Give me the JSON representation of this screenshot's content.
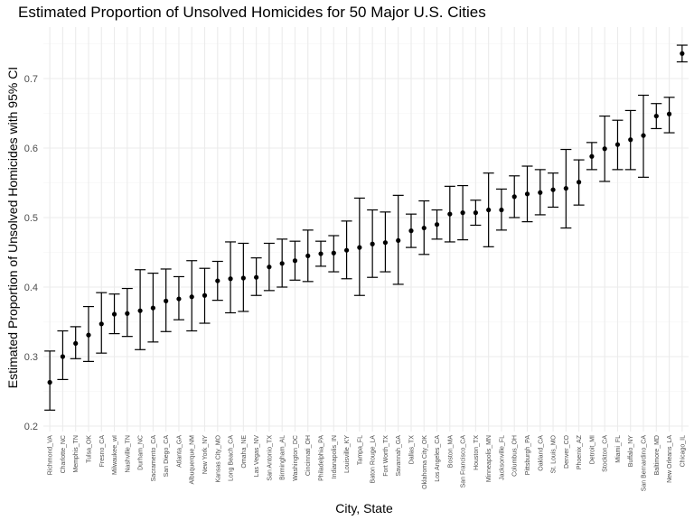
{
  "chart_data": {
    "type": "scatter",
    "title": "Estimated Proportion of Unsolved Homicides for 50 Major U.S. Cities",
    "xlabel": "City, State",
    "ylabel": "Estimated Proportion of Unsolved Homicides with 95% CI",
    "ylim": [
      0.2,
      0.75
    ],
    "yticks": [
      0.2,
      0.3,
      0.4,
      0.5,
      0.6,
      0.7
    ],
    "ytick_labels": [
      "0.2",
      "0.3",
      "0.4",
      "0.5",
      "0.6",
      "0.7"
    ],
    "grid": true,
    "categories": [
      "Richmond_VA",
      "Charlotte_NC",
      "Memphis_TN",
      "Tulsa_OK",
      "Fresno_CA",
      "Milwaukee_wI",
      "Nashville_TN",
      "Durham_NC",
      "Sacramento_CA",
      "San Diego_CA",
      "Atlanta_GA",
      "Albuquerque_NM",
      "New York_NY",
      "Kansas City_MO",
      "Long Beach_CA",
      "Omaha_NE",
      "Las Vegas_NV",
      "San Antonio_TX",
      "Birmingham_AL",
      "Washington_DC",
      "Cincinnati_OH",
      "Philadelphia_PA",
      "Indianapolis_IN",
      "Louisville_KY",
      "Tampa_FL",
      "Baton Rouge_LA",
      "Fort Worth_TX",
      "Savannah_GA",
      "Dallas_TX",
      "Oklahoma City_OK",
      "Los Angeles_CA",
      "Boston_MA",
      "San Francisco_CA",
      "Houston_TX",
      "Minneapolis_MN",
      "Jacksonville_FL",
      "Columbus_OH",
      "Pittsburgh_PA",
      "Oakland_CA",
      "St. Louis_MO",
      "Denver_CO",
      "Phoenix_AZ",
      "Detroit_MI",
      "Stockton_CA",
      "Miami_FL",
      "Buffalo_NY",
      "San Bernardino_CA",
      "Baltimore_MD",
      "New Orleans_LA",
      "Chicago_IL"
    ],
    "estimate": [
      0.263,
      0.3,
      0.319,
      0.331,
      0.347,
      0.361,
      0.362,
      0.366,
      0.37,
      0.38,
      0.383,
      0.386,
      0.388,
      0.409,
      0.412,
      0.413,
      0.414,
      0.429,
      0.434,
      0.438,
      0.445,
      0.448,
      0.449,
      0.453,
      0.457,
      0.462,
      0.464,
      0.467,
      0.481,
      0.485,
      0.49,
      0.505,
      0.507,
      0.507,
      0.511,
      0.511,
      0.53,
      0.534,
      0.536,
      0.54,
      0.542,
      0.551,
      0.588,
      0.599,
      0.605,
      0.612,
      0.618,
      0.646,
      0.649,
      0.736
    ],
    "ci_low": [
      0.223,
      0.267,
      0.297,
      0.293,
      0.305,
      0.333,
      0.329,
      0.31,
      0.321,
      0.336,
      0.353,
      0.337,
      0.348,
      0.381,
      0.363,
      0.365,
      0.388,
      0.395,
      0.4,
      0.41,
      0.408,
      0.43,
      0.422,
      0.412,
      0.388,
      0.414,
      0.422,
      0.404,
      0.457,
      0.447,
      0.469,
      0.465,
      0.468,
      0.489,
      0.458,
      0.482,
      0.5,
      0.494,
      0.504,
      0.515,
      0.485,
      0.518,
      0.569,
      0.552,
      0.569,
      0.569,
      0.558,
      0.628,
      0.622,
      0.724
    ],
    "ci_high": [
      0.308,
      0.337,
      0.343,
      0.372,
      0.392,
      0.39,
      0.398,
      0.425,
      0.42,
      0.426,
      0.415,
      0.438,
      0.427,
      0.437,
      0.465,
      0.463,
      0.442,
      0.463,
      0.469,
      0.466,
      0.482,
      0.466,
      0.474,
      0.495,
      0.528,
      0.511,
      0.508,
      0.532,
      0.505,
      0.524,
      0.511,
      0.545,
      0.546,
      0.525,
      0.564,
      0.541,
      0.56,
      0.574,
      0.569,
      0.564,
      0.598,
      0.583,
      0.608,
      0.646,
      0.64,
      0.654,
      0.676,
      0.664,
      0.673,
      0.748
    ]
  }
}
